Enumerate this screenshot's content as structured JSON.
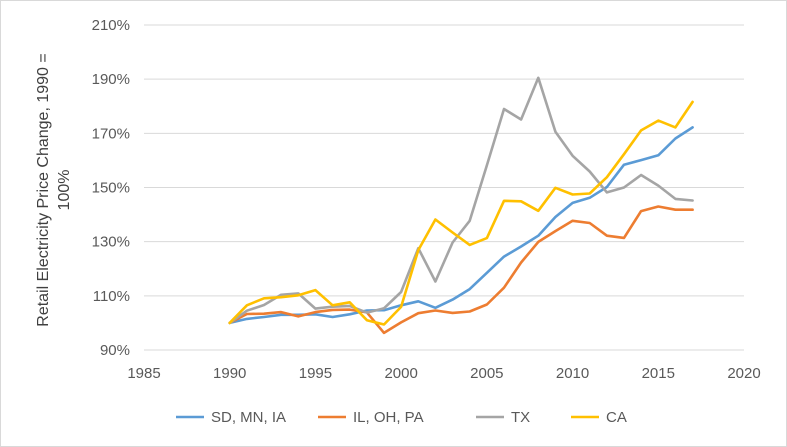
{
  "chart_data": {
    "type": "line",
    "title": "",
    "xlabel": "",
    "ylabel_lines": [
      "Retail Electricity Price Change, 1990 =",
      "100%"
    ],
    "x_ticks": [
      1985,
      1990,
      1995,
      2000,
      2005,
      2010,
      2015,
      2020
    ],
    "y_ticks": [
      "90%",
      "110%",
      "130%",
      "150%",
      "170%",
      "190%",
      "210%"
    ],
    "xlim": [
      1985,
      2020
    ],
    "ylim": [
      90,
      210
    ],
    "grid": "horizontal",
    "legend_position": "bottom",
    "x": [
      1990,
      1991,
      1992,
      1993,
      1994,
      1995,
      1996,
      1997,
      1998,
      1999,
      2000,
      2001,
      2002,
      2003,
      2004,
      2005,
      2006,
      2007,
      2008,
      2009,
      2010,
      2011,
      2012,
      2013,
      2014,
      2015,
      2016,
      2017
    ],
    "series": [
      {
        "name": "SD, MN, IA",
        "color": "#5b9bd5",
        "values": [
          100,
          101.5,
          102.2,
          103,
          103,
          103.2,
          102.2,
          103.2,
          104.6,
          104.7,
          106.5,
          108,
          105.6,
          108.6,
          112.5,
          118.5,
          124.5,
          128.2,
          132.2,
          139.1,
          144.3,
          146.2,
          150.2,
          158.4,
          160.1,
          161.9,
          168.1,
          172.2
        ]
      },
      {
        "name": "IL, OH, PA",
        "color": "#ed7d31",
        "values": [
          100,
          103.3,
          103.4,
          104,
          102.4,
          104,
          104.8,
          104.9,
          103.9,
          96.3,
          100.2,
          103.6,
          104.6,
          103.7,
          104.2,
          106.8,
          113,
          122.3,
          129.9,
          133.9,
          137.7,
          136.9,
          132.2,
          131.4,
          141.3,
          143,
          141.8,
          141.8
        ]
      },
      {
        "name": "TX",
        "color": "#a5a5a5",
        "values": [
          100,
          104.5,
          106.6,
          110.4,
          110.9,
          105.3,
          106,
          106.3,
          103.8,
          105.4,
          111.4,
          127.6,
          115.3,
          129.7,
          137.7,
          158.2,
          179,
          175.1,
          190.5,
          170.6,
          161.7,
          155.9,
          148.2,
          150,
          154.6,
          150.7,
          145.8,
          145.2
        ]
      },
      {
        "name": "CA",
        "color": "#ffc000",
        "values": [
          100,
          106.5,
          109.1,
          109.5,
          110.2,
          112.1,
          106.5,
          107.6,
          101,
          99.4,
          105.9,
          126.9,
          138.2,
          133.4,
          128.8,
          131.3,
          145.1,
          144.9,
          141.4,
          149.9,
          147.4,
          147.8,
          153.8,
          162.3,
          171.1,
          174.7,
          172.2,
          181.6
        ]
      }
    ]
  }
}
